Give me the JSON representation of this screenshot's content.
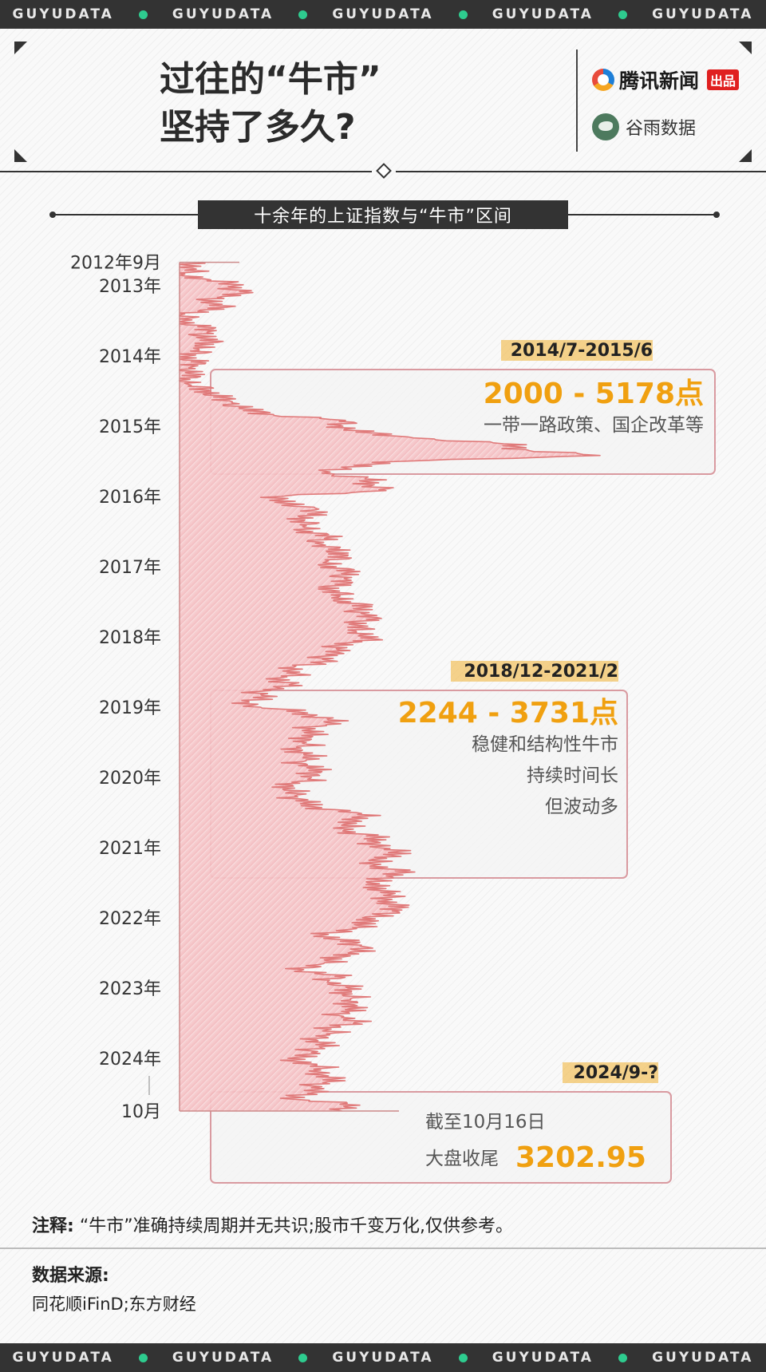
{
  "strip_text": [
    "GUYUDATA",
    "GUYUDATA",
    "GUYUDATA",
    "GUYUDATA",
    "GUYUDATA"
  ],
  "header": {
    "title_line1": "过往的“牛市”",
    "title_line2": "坚持了多久?",
    "brand1_name": "腾讯新闻",
    "brand1_badge": "出品",
    "brand2_name": "谷雨数据"
  },
  "subtitle": "十余年的上证指数与“牛市”区间",
  "colors": {
    "accent": "#f0a010",
    "line": "#e07070",
    "fill": "#f4c6c8",
    "dark": "#333333",
    "strip_dot": "#2ecc8f"
  },
  "chart_data": {
    "type": "area",
    "orientation": "time on vertical axis, index value on horizontal axis",
    "y_tick_labels": [
      "2012年9月",
      "2013年",
      "2014年",
      "2015年",
      "2016年",
      "2017年",
      "2018年",
      "2019年",
      "2020年",
      "2021年",
      "2022年",
      "2023年",
      "2024年",
      "10月"
    ],
    "xlim": [
      1900,
      5300
    ],
    "series": [
      {
        "points": [
          [
            "2012-09",
            2100
          ],
          [
            "2012-10",
            2060
          ],
          [
            "2012-11",
            2000
          ],
          [
            "2012-12",
            2200
          ],
          [
            "2013-01",
            2380
          ],
          [
            "2013-02",
            2420
          ],
          [
            "2013-03",
            2250
          ],
          [
            "2013-04",
            2200
          ],
          [
            "2013-05",
            2300
          ],
          [
            "2013-06",
            1960
          ],
          [
            "2013-07",
            1990
          ],
          [
            "2013-08",
            2100
          ],
          [
            "2013-09",
            2170
          ],
          [
            "2013-10",
            2140
          ],
          [
            "2013-11",
            2220
          ],
          [
            "2013-12",
            2110
          ],
          [
            "2014-01",
            2030
          ],
          [
            "2014-02",
            2050
          ],
          [
            "2014-03",
            2030
          ],
          [
            "2014-04",
            2030
          ],
          [
            "2014-05",
            2040
          ],
          [
            "2014-06",
            2050
          ],
          [
            "2014-07",
            2200
          ],
          [
            "2014-08",
            2220
          ],
          [
            "2014-09",
            2360
          ],
          [
            "2014-10",
            2420
          ],
          [
            "2014-11",
            2680
          ],
          [
            "2014-12",
            3230
          ],
          [
            "2015-01",
            3210
          ],
          [
            "2015-02",
            3310
          ],
          [
            "2015-03",
            3750
          ],
          [
            "2015-04",
            4440
          ],
          [
            "2015-05",
            4610
          ],
          [
            "2015-06",
            5178
          ],
          [
            "2015-07",
            3660
          ],
          [
            "2015-08",
            3200
          ],
          [
            "2015-09",
            3050
          ],
          [
            "2015-10",
            3380
          ],
          [
            "2015-11",
            3450
          ],
          [
            "2015-12",
            3540
          ],
          [
            "2016-01",
            2740
          ],
          [
            "2016-02",
            2690
          ],
          [
            "2016-03",
            3000
          ],
          [
            "2016-04",
            2940
          ],
          [
            "2016-05",
            2920
          ],
          [
            "2016-06",
            2930
          ],
          [
            "2016-07",
            2980
          ],
          [
            "2016-08",
            3090
          ],
          [
            "2016-09",
            3000
          ],
          [
            "2016-10",
            3100
          ],
          [
            "2016-11",
            3250
          ],
          [
            "2016-12",
            3100
          ],
          [
            "2017-01",
            3160
          ],
          [
            "2017-02",
            3240
          ],
          [
            "2017-03",
            3220
          ],
          [
            "2017-04",
            3150
          ],
          [
            "2017-05",
            3120
          ],
          [
            "2017-06",
            3190
          ],
          [
            "2017-07",
            3270
          ],
          [
            "2017-08",
            3360
          ],
          [
            "2017-09",
            3350
          ],
          [
            "2017-10",
            3390
          ],
          [
            "2017-11",
            3320
          ],
          [
            "2017-12",
            3310
          ],
          [
            "2018-01",
            3480
          ],
          [
            "2018-02",
            3260
          ],
          [
            "2018-03",
            3160
          ],
          [
            "2018-04",
            3080
          ],
          [
            "2018-05",
            3100
          ],
          [
            "2018-06",
            2850
          ],
          [
            "2018-07",
            2880
          ],
          [
            "2018-08",
            2730
          ],
          [
            "2018-09",
            2820
          ],
          [
            "2018-10",
            2600
          ],
          [
            "2018-11",
            2590
          ],
          [
            "2018-12",
            2490
          ],
          [
            "2019-01",
            2580
          ],
          [
            "2019-02",
            2940
          ],
          [
            "2019-03",
            3090
          ],
          [
            "2019-04",
            3080
          ],
          [
            "2019-05",
            2900
          ],
          [
            "2019-06",
            2980
          ],
          [
            "2019-07",
            2930
          ],
          [
            "2019-08",
            2890
          ],
          [
            "2019-09",
            2910
          ],
          [
            "2019-10",
            2930
          ],
          [
            "2019-11",
            2870
          ],
          [
            "2019-12",
            3050
          ],
          [
            "2020-01",
            2970
          ],
          [
            "2020-02",
            2880
          ],
          [
            "2020-03",
            2750
          ],
          [
            "2020-04",
            2860
          ],
          [
            "2020-05",
            2850
          ],
          [
            "2020-06",
            2980
          ],
          [
            "2020-07",
            3310
          ],
          [
            "2020-08",
            3400
          ],
          [
            "2020-09",
            3220
          ],
          [
            "2020-10",
            3220
          ],
          [
            "2020-11",
            3390
          ],
          [
            "2020-12",
            3470
          ],
          [
            "2021-01",
            3480
          ],
          [
            "2021-02",
            3730
          ],
          [
            "2021-03",
            3440
          ],
          [
            "2021-04",
            3450
          ],
          [
            "2021-05",
            3610
          ],
          [
            "2021-06",
            3590
          ],
          [
            "2021-07",
            3400
          ],
          [
            "2021-08",
            3540
          ],
          [
            "2021-09",
            3570
          ],
          [
            "2021-10",
            3550
          ],
          [
            "2021-11",
            3560
          ],
          [
            "2021-12",
            3640
          ],
          [
            "2022-01",
            3360
          ],
          [
            "2022-02",
            3460
          ],
          [
            "2022-03",
            3250
          ],
          [
            "2022-04",
            3050
          ],
          [
            "2022-05",
            3190
          ],
          [
            "2022-06",
            3400
          ],
          [
            "2022-07",
            3250
          ],
          [
            "2022-08",
            3200
          ],
          [
            "2022-09",
            3020
          ],
          [
            "2022-10",
            2890
          ],
          [
            "2022-11",
            3150
          ],
          [
            "2022-12",
            3090
          ],
          [
            "2023-01",
            3250
          ],
          [
            "2023-02",
            3280
          ],
          [
            "2023-03",
            3270
          ],
          [
            "2023-04",
            3320
          ],
          [
            "2023-05",
            3200
          ],
          [
            "2023-06",
            3200
          ],
          [
            "2023-07",
            3290
          ],
          [
            "2023-08",
            3120
          ],
          [
            "2023-09",
            3110
          ],
          [
            "2023-10",
            3020
          ],
          [
            "2023-11",
            3030
          ],
          [
            "2023-12",
            2970
          ],
          [
            "2024-01",
            2790
          ],
          [
            "2024-02",
            3010
          ],
          [
            "2024-03",
            3040
          ],
          [
            "2024-04",
            3100
          ],
          [
            "2024-05",
            3090
          ],
          [
            "2024-06",
            2970
          ],
          [
            "2024-07",
            2940
          ],
          [
            "2024-08",
            2840
          ],
          [
            "2024-09",
            3340
          ],
          [
            "2024-10",
            3202.95
          ]
        ]
      }
    ],
    "annotations": [
      {
        "period": "2014/7-2015/6",
        "range_low": "2000",
        "range_high": "5178",
        "value_text": "2000 - 5178点",
        "start": "2014-07",
        "end": "2015-06",
        "notes": [
          "一带一路政策、国企改革等"
        ]
      },
      {
        "period": "2018/12-2021/2",
        "range_low": "2244",
        "range_high": "3731",
        "value_text": "2244 - 3731点",
        "start": "2018-12",
        "end": "2021-02",
        "notes": [
          "稳健和结构性牛市",
          "持续时间长",
          "但波动多"
        ]
      },
      {
        "period": "2024/9-?",
        "value_text": "3202.95",
        "start": "2024-09",
        "end": "2024-10",
        "notes": [
          "截至10月16日",
          "大盘收尾"
        ]
      }
    ]
  },
  "footer": {
    "note_label": "注释:",
    "note_text": "“牛市”准确持续周期并无共识;股市千变万化,仅供参考。",
    "source_title": "数据来源:",
    "source_text": "同花顺iFinD;东方财经"
  }
}
